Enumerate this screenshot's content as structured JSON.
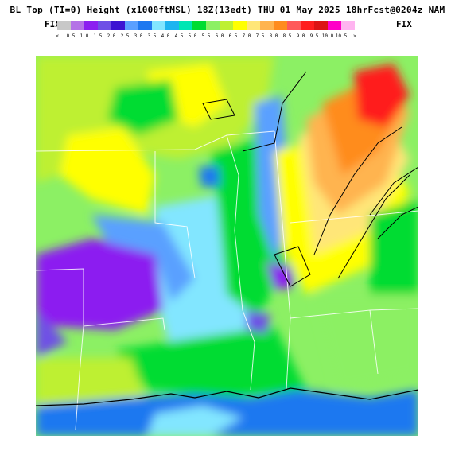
{
  "header": {
    "title": "BL Top (TI=0) Height (x1000ftMSL) 18Z(13edt) THU 01 May 2025 18hrFcst@0204z NAM",
    "fix_left": "FIX",
    "fix_right": "FIX"
  },
  "legend": {
    "colors": [
      "#c8c8c8",
      "#b473e6",
      "#8c1ef0",
      "#6e50e6",
      "#3c14d2",
      "#5aa0ff",
      "#1e78f0",
      "#82e6ff",
      "#1eb4f0",
      "#00e6b4",
      "#00dc32",
      "#8cf064",
      "#bef032",
      "#ffff00",
      "#ffe678",
      "#ffb450",
      "#ff8c1e",
      "#ff5a5a",
      "#ff1e1e",
      "#dc1414",
      "#ff00c8",
      "#ffb4f0"
    ],
    "ticks": [
      "<",
      "0.5",
      "1.0",
      "1.5",
      "2.0",
      "2.5",
      "3.0",
      "3.5",
      "4.0",
      "4.5",
      "5.0",
      "5.5",
      "6.0",
      "6.5",
      "7.0",
      "7.5",
      "8.0",
      "8.5",
      "9.0",
      "9.5",
      "10.0",
      "10.5",
      ">"
    ]
  },
  "map_colors": {
    "ocean": "#1e78f0",
    "low": "#8c1ef0",
    "mid_blue": "#5aa0ff",
    "cyan": "#82e6ff",
    "green": "#00dc32",
    "light_green": "#8cf064",
    "yellow_green": "#bef032",
    "yellow": "#ffff00",
    "pale_yellow": "#ffe678",
    "orange": "#ffb450",
    "dark_orange": "#ff8c1e",
    "red": "#ff1e1e"
  }
}
